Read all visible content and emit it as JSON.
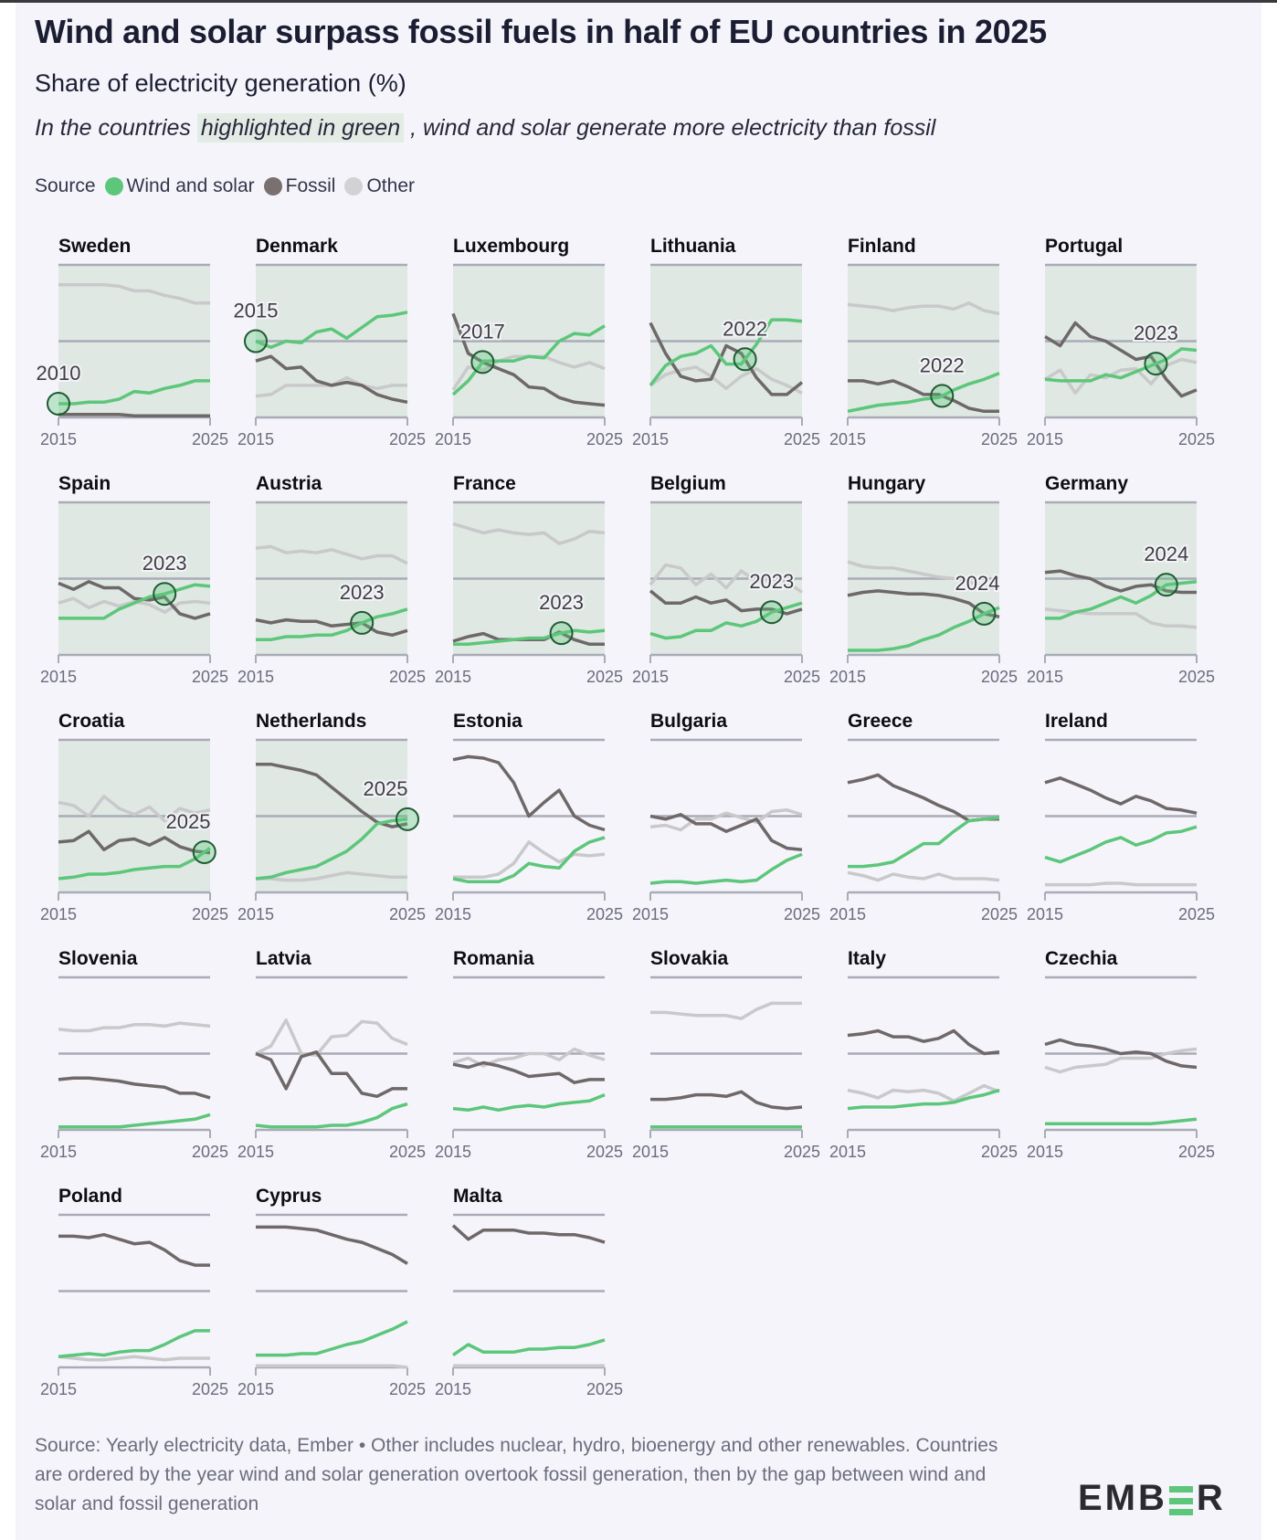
{
  "title": "Wind and solar surpass fossil fuels in half of EU countries in 2025",
  "subtitle": "Share of electricity generation (%)",
  "note": {
    "before": "In the countries ",
    "highlight": "highlighted in green",
    "after": " , wind and solar generate more electricity than fossil"
  },
  "legend": {
    "label": "Source",
    "items": [
      {
        "name": "Wind and solar",
        "color": "#5cc77a"
      },
      {
        "name": "Fossil",
        "color": "#7a7070"
      },
      {
        "name": "Other",
        "color": "#d2d2d4"
      }
    ]
  },
  "footer": "Source: Yearly electricity data, Ember • Other includes nuclear, hydro, bioenergy and other renewables. Countries are ordered by the year wind and solar generation overtook fossil generation, then by the gap between wind and solar and fossil generation",
  "logo": {
    "left": "EMB",
    "right": "R"
  },
  "colors": {
    "wind_solar": "#5cc77a",
    "fossil": "#6e6868",
    "other": "#c9c9cb",
    "highlight_bg": "#dfe8e2",
    "gridline": "#a9abb6",
    "marker_stroke": "#1f5a33"
  },
  "chart_data": {
    "type": "line",
    "title": "Wind and solar surpass fossil fuels in half of EU countries in 2025",
    "ylabel": "Share of electricity generation (%)",
    "ylim": [
      0,
      100
    ],
    "gridlines": [
      0,
      50,
      100
    ],
    "x": [
      2015,
      2016,
      2017,
      2018,
      2019,
      2020,
      2021,
      2022,
      2023,
      2024,
      2025
    ],
    "xtick_labels": [
      "2015",
      "2025"
    ],
    "legend_position": "top-left",
    "panels": [
      {
        "country": "Sweden",
        "highlighted": true,
        "crossover_year": "2010",
        "wind_solar": [
          9,
          9,
          10,
          10,
          12,
          17,
          16,
          19,
          21,
          24,
          24
        ],
        "fossil": [
          2,
          2,
          2,
          2,
          2,
          1,
          1,
          1,
          1,
          1,
          1
        ],
        "other": [
          87,
          87,
          87,
          87,
          86,
          83,
          83,
          80,
          78,
          75,
          75
        ]
      },
      {
        "country": "Denmark",
        "highlighted": true,
        "crossover_year": "2015",
        "wind_solar": [
          50,
          46,
          50,
          49,
          56,
          58,
          52,
          59,
          66,
          67,
          69
        ],
        "fossil": [
          37,
          40,
          32,
          33,
          24,
          21,
          23,
          21,
          15,
          12,
          10
        ],
        "other": [
          14,
          15,
          21,
          21,
          21,
          21,
          26,
          21,
          19,
          21,
          21
        ]
      },
      {
        "country": "Luxembourg",
        "highlighted": true,
        "crossover_year": "2017",
        "wind_solar": [
          15,
          24,
          37,
          37,
          37,
          40,
          39,
          50,
          55,
          54,
          60
        ],
        "fossil": [
          68,
          42,
          36,
          32,
          28,
          20,
          19,
          13,
          10,
          9,
          8
        ],
        "other": [
          18,
          33,
          31,
          37,
          40,
          40,
          40,
          36,
          33,
          36,
          32
        ]
      },
      {
        "country": "Lithuania",
        "highlighted": true,
        "crossover_year": "2022",
        "wind_solar": [
          21,
          34,
          40,
          42,
          47,
          35,
          35,
          48,
          64,
          64,
          63
        ],
        "fossil": [
          62,
          42,
          27,
          24,
          25,
          47,
          42,
          26,
          15,
          15,
          23
        ],
        "other": [
          21,
          28,
          31,
          33,
          27,
          19,
          27,
          32,
          25,
          21,
          16
        ]
      },
      {
        "country": "Finland",
        "highlighted": true,
        "crossover_year": "2022",
        "wind_solar": [
          4,
          6,
          8,
          9,
          10,
          12,
          13,
          18,
          22,
          25,
          29
        ],
        "fossil": [
          24,
          24,
          22,
          24,
          20,
          15,
          15,
          11,
          6,
          4,
          4
        ],
        "other": [
          74,
          73,
          72,
          70,
          72,
          73,
          73,
          71,
          75,
          70,
          68
        ]
      },
      {
        "country": "Portugal",
        "highlighted": true,
        "crossover_year": "2023",
        "wind_solar": [
          25,
          24,
          24,
          24,
          28,
          26,
          30,
          34,
          38,
          45,
          44
        ],
        "fossil": [
          53,
          47,
          62,
          53,
          50,
          44,
          38,
          40,
          25,
          14,
          18
        ],
        "other": [
          25,
          31,
          16,
          28,
          26,
          31,
          32,
          22,
          34,
          38,
          36
        ]
      },
      {
        "country": "Spain",
        "highlighted": true,
        "crossover_year": "2023",
        "wind_solar": [
          24,
          24,
          24,
          24,
          30,
          34,
          38,
          40,
          43,
          46,
          45
        ],
        "fossil": [
          47,
          43,
          48,
          44,
          44,
          37,
          36,
          38,
          27,
          24,
          27
        ],
        "other": [
          34,
          37,
          31,
          35,
          32,
          35,
          33,
          28,
          34,
          35,
          34
        ]
      },
      {
        "country": "Austria",
        "highlighted": true,
        "crossover_year": "2023",
        "wind_solar": [
          10,
          10,
          12,
          12,
          13,
          13,
          16,
          21,
          25,
          27,
          30
        ],
        "fossil": [
          23,
          21,
          23,
          22,
          22,
          19,
          20,
          21,
          15,
          13,
          16
        ],
        "other": [
          70,
          71,
          67,
          68,
          67,
          69,
          66,
          63,
          65,
          65,
          60
        ]
      },
      {
        "country": "France",
        "highlighted": true,
        "crossover_year": "2023",
        "wind_solar": [
          7,
          7,
          8,
          9,
          10,
          11,
          11,
          14,
          16,
          15,
          16
        ],
        "fossil": [
          9,
          12,
          14,
          10,
          10,
          10,
          10,
          15,
          10,
          7,
          7
        ],
        "other": [
          86,
          83,
          80,
          82,
          80,
          79,
          80,
          73,
          76,
          81,
          80
        ]
      },
      {
        "country": "Belgium",
        "highlighted": true,
        "crossover_year": "2023",
        "wind_solar": [
          14,
          11,
          12,
          16,
          16,
          21,
          19,
          22,
          28,
          31,
          34
        ],
        "fossil": [
          42,
          34,
          34,
          38,
          34,
          36,
          29,
          30,
          30,
          27,
          30
        ],
        "other": [
          46,
          59,
          57,
          46,
          53,
          44,
          55,
          48,
          50,
          48,
          41
        ]
      },
      {
        "country": "Hungary",
        "highlighted": true,
        "crossover_year": "2024",
        "wind_solar": [
          3,
          3,
          3,
          4,
          6,
          10,
          13,
          18,
          22,
          27,
          31
        ],
        "fossil": [
          39,
          41,
          42,
          41,
          40,
          40,
          39,
          37,
          34,
          27,
          25
        ],
        "other": [
          61,
          58,
          57,
          57,
          55,
          53,
          51,
          50,
          48,
          44,
          44
        ]
      },
      {
        "country": "Germany",
        "highlighted": true,
        "crossover_year": "2024",
        "wind_solar": [
          24,
          24,
          28,
          30,
          34,
          38,
          34,
          39,
          46,
          47,
          48
        ],
        "fossil": [
          54,
          55,
          52,
          50,
          45,
          42,
          45,
          46,
          42,
          41,
          41
        ],
        "other": [
          30,
          29,
          28,
          27,
          27,
          27,
          27,
          21,
          19,
          19,
          18
        ]
      },
      {
        "country": "Croatia",
        "highlighted": true,
        "crossover_year": "2025",
        "wind_solar": [
          9,
          10,
          12,
          12,
          13,
          15,
          16,
          17,
          17,
          22,
          29
        ],
        "fossil": [
          33,
          34,
          40,
          28,
          34,
          35,
          31,
          36,
          30,
          27,
          26
        ],
        "other": [
          59,
          57,
          50,
          63,
          55,
          51,
          56,
          47,
          55,
          52,
          54
        ]
      },
      {
        "country": "Netherlands",
        "highlighted": true,
        "crossover_year": "2025",
        "wind_solar": [
          9,
          10,
          13,
          15,
          17,
          22,
          27,
          35,
          45,
          47,
          48
        ],
        "fossil": [
          84,
          84,
          82,
          80,
          77,
          69,
          61,
          53,
          46,
          43,
          45
        ],
        "other": [
          9,
          9,
          8,
          8,
          9,
          11,
          13,
          12,
          11,
          10,
          10
        ]
      },
      {
        "country": "Estonia",
        "highlighted": false,
        "crossover_year": null,
        "wind_solar": [
          9,
          7,
          7,
          7,
          11,
          19,
          17,
          16,
          27,
          33,
          36
        ],
        "fossil": [
          87,
          89,
          88,
          85,
          72,
          50,
          59,
          67,
          50,
          44,
          41
        ],
        "other": [
          10,
          10,
          10,
          12,
          19,
          33,
          26,
          20,
          25,
          24,
          25
        ]
      },
      {
        "country": "Bulgaria",
        "highlighted": false,
        "crossover_year": null,
        "wind_solar": [
          6,
          7,
          7,
          6,
          7,
          8,
          7,
          8,
          15,
          21,
          25
        ],
        "fossil": [
          50,
          48,
          51,
          45,
          45,
          40,
          44,
          48,
          34,
          29,
          28
        ],
        "other": [
          43,
          44,
          41,
          48,
          48,
          52,
          49,
          46,
          53,
          54,
          51
        ]
      },
      {
        "country": "Greece",
        "highlighted": false,
        "crossover_year": null,
        "wind_solar": [
          17,
          17,
          18,
          20,
          26,
          32,
          32,
          40,
          47,
          48,
          49
        ],
        "fossil": [
          72,
          74,
          77,
          70,
          66,
          62,
          57,
          53,
          47,
          48,
          48
        ],
        "other": [
          13,
          11,
          8,
          12,
          10,
          9,
          12,
          9,
          9,
          9,
          8
        ]
      },
      {
        "country": "Ireland",
        "highlighted": false,
        "crossover_year": null,
        "wind_solar": [
          23,
          20,
          24,
          28,
          33,
          36,
          31,
          34,
          39,
          40,
          43
        ],
        "fossil": [
          72,
          75,
          71,
          67,
          62,
          58,
          63,
          60,
          55,
          54,
          52
        ],
        "other": [
          5,
          5,
          5,
          5,
          6,
          6,
          5,
          5,
          5,
          5,
          5
        ]
      },
      {
        "country": "Slovenia",
        "highlighted": false,
        "crossover_year": null,
        "wind_solar": [
          2,
          2,
          2,
          2,
          2,
          3,
          4,
          5,
          6,
          7,
          10
        ],
        "fossil": [
          33,
          34,
          34,
          33,
          32,
          30,
          29,
          28,
          24,
          24,
          21
        ],
        "other": [
          66,
          65,
          65,
          67,
          67,
          69,
          69,
          68,
          70,
          69,
          68
        ]
      },
      {
        "country": "Latvia",
        "highlighted": false,
        "crossover_year": null,
        "wind_solar": [
          3,
          2,
          2,
          2,
          2,
          3,
          3,
          5,
          8,
          14,
          17
        ],
        "fossil": [
          50,
          46,
          27,
          48,
          51,
          37,
          37,
          24,
          22,
          27,
          27
        ],
        "other": [
          50,
          55,
          72,
          50,
          49,
          61,
          62,
          71,
          70,
          60,
          56
        ]
      },
      {
        "country": "Romania",
        "highlighted": false,
        "crossover_year": null,
        "wind_solar": [
          14,
          13,
          15,
          13,
          15,
          16,
          15,
          17,
          18,
          19,
          23
        ],
        "fossil": [
          43,
          41,
          44,
          42,
          39,
          35,
          36,
          37,
          31,
          33,
          33
        ],
        "other": [
          44,
          47,
          42,
          46,
          47,
          50,
          50,
          46,
          53,
          49,
          46
        ]
      },
      {
        "country": "Slovakia",
        "highlighted": false,
        "crossover_year": null,
        "wind_solar": [
          2,
          2,
          2,
          2,
          2,
          2,
          2,
          2,
          2,
          2,
          2
        ],
        "fossil": [
          20,
          20,
          21,
          23,
          23,
          22,
          25,
          18,
          15,
          14,
          15
        ],
        "other": [
          77,
          77,
          76,
          75,
          75,
          75,
          73,
          79,
          83,
          83,
          83
        ]
      },
      {
        "country": "Italy",
        "highlighted": false,
        "crossover_year": null,
        "wind_solar": [
          14,
          15,
          15,
          15,
          16,
          17,
          17,
          18,
          21,
          23,
          26
        ],
        "fossil": [
          62,
          63,
          65,
          61,
          61,
          58,
          60,
          65,
          56,
          50,
          51
        ],
        "other": [
          26,
          24,
          21,
          26,
          25,
          26,
          24,
          19,
          24,
          29,
          25
        ]
      },
      {
        "country": "Czechia",
        "highlighted": false,
        "crossover_year": null,
        "wind_solar": [
          4,
          4,
          4,
          4,
          4,
          4,
          4,
          4,
          5,
          6,
          7
        ],
        "fossil": [
          56,
          59,
          56,
          55,
          53,
          50,
          51,
          50,
          45,
          42,
          41
        ],
        "other": [
          41,
          38,
          41,
          42,
          43,
          47,
          47,
          47,
          50,
          52,
          53
        ]
      },
      {
        "country": "Poland",
        "highlighted": false,
        "crossover_year": null,
        "wind_solar": [
          7,
          8,
          9,
          8,
          10,
          11,
          11,
          15,
          20,
          24,
          24
        ],
        "fossil": [
          86,
          86,
          85,
          87,
          84,
          81,
          82,
          77,
          70,
          67,
          67
        ],
        "other": [
          7,
          6,
          5,
          5,
          6,
          7,
          6,
          5,
          6,
          6,
          6
        ]
      },
      {
        "country": "Cyprus",
        "highlighted": false,
        "crossover_year": null,
        "wind_solar": [
          8,
          8,
          8,
          9,
          9,
          12,
          15,
          17,
          21,
          25,
          30
        ],
        "fossil": [
          92,
          92,
          92,
          91,
          90,
          87,
          84,
          82,
          78,
          74,
          68
        ],
        "other": [
          1,
          1,
          1,
          1,
          1,
          1,
          1,
          1,
          1,
          1,
          0
        ]
      },
      {
        "country": "Malta",
        "highlighted": false,
        "crossover_year": null,
        "wind_solar": [
          8,
          15,
          10,
          10,
          10,
          12,
          12,
          13,
          13,
          15,
          18
        ],
        "fossil": [
          93,
          84,
          90,
          90,
          90,
          88,
          88,
          87,
          87,
          85,
          82
        ],
        "other": [
          1,
          1,
          1,
          1,
          1,
          1,
          1,
          1,
          1,
          1,
          1
        ]
      }
    ]
  }
}
